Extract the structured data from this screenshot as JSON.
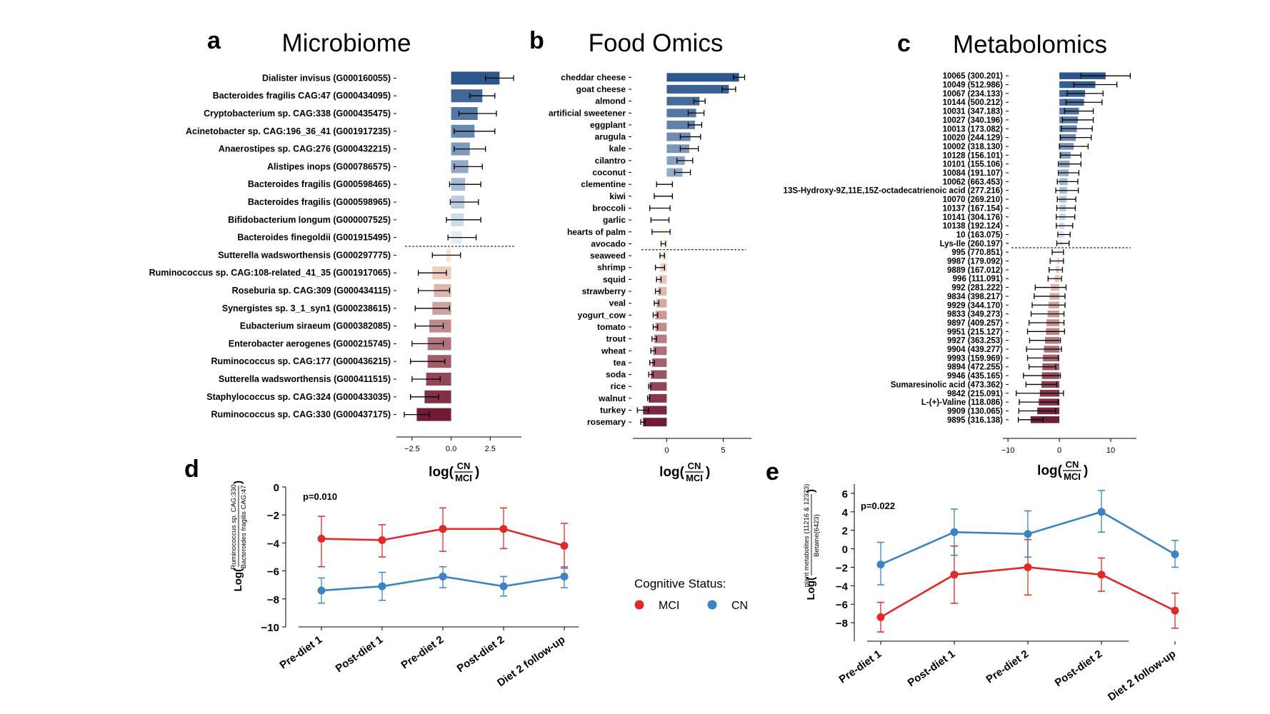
{
  "panels": {
    "a": {
      "letter": "a",
      "title": "Microbiome"
    },
    "b": {
      "letter": "b",
      "title": "Food Omics"
    },
    "c": {
      "letter": "c",
      "title": "Metabolomics"
    },
    "d": {
      "letter": "d"
    },
    "e": {
      "letter": "e"
    }
  },
  "bar_xlabel_prefix": "log(",
  "bar_xlabel_num": "CN",
  "bar_xlabel_den": "MCI",
  "bar_xlabel_suffix": ")",
  "legend": {
    "title": "Cognitive Status:",
    "items": [
      {
        "name": "MCI",
        "color": "#e02a2a"
      },
      {
        "name": "CN",
        "color": "#3a84c4"
      }
    ]
  },
  "chart_data": [
    {
      "type": "bar",
      "orientation": "horizontal",
      "panel": "a",
      "xlim": [
        -3.5,
        4.5
      ],
      "xticks": [
        -2.5,
        0,
        2.5
      ],
      "xtick_labels": [
        "−2.5",
        "0.0",
        "2.5"
      ],
      "threshold_after_index": 9,
      "categories": [
        "Dialister invisus (G000160055)",
        "Bacteroides fragilis CAG:47 (G000434095)",
        "Cryptobacterium sp. CAG:338 (G000435475)",
        "Acinetobacter sp. CAG:196_36_41 (G001917235)",
        "Anaerostipes sp. CAG:276 (G000432215)",
        "Alistipes inops (G000786575)",
        "Bacteroides fragilis (G000598465)",
        "Bacteroides fragilis (G000598965)",
        "Bifidobacterium longum (G000007525)",
        "Bacteroides finegoldii (G001915495)",
        "Sutterella wadsworthensis (G000297775)",
        "Ruminococcus sp. CAG:108-related_41_35 (G001917065)",
        "Roseburia sp. CAG:309 (G000434115)",
        "Synergistes sp. 3_1_syn1 (G000238615)",
        "Eubacterium siraeum (G000382085)",
        "Enterobacter aerogenes (G000215745)",
        "Ruminococcus sp. CAG:177 (G000436215)",
        "Sutterella wadsworthensis (G000411515)",
        "Staphylococcus sp. CAG:324 (G000433035)",
        "Ruminococcus sp. CAG:330 (G000437175)"
      ],
      "values": [
        3.1,
        2.0,
        1.7,
        1.5,
        1.2,
        1.1,
        0.9,
        0.85,
        0.8,
        0.7,
        -0.3,
        -1.2,
        -1.1,
        -1.2,
        -1.4,
        -1.5,
        -1.5,
        -1.6,
        -1.7,
        -2.2
      ],
      "errors": [
        0.9,
        0.8,
        1.2,
        1.3,
        1.0,
        0.9,
        1.0,
        0.9,
        1.1,
        0.9,
        0.9,
        0.9,
        1.0,
        1.1,
        0.9,
        1.0,
        1.1,
        0.9,
        0.9,
        0.8
      ]
    },
    {
      "type": "bar",
      "orientation": "horizontal",
      "panel": "b",
      "xlim": [
        -3,
        7.5
      ],
      "xticks": [
        0,
        5
      ],
      "xtick_labels": [
        "0",
        "5"
      ],
      "threshold_after_index": 14,
      "categories": [
        "cheddar cheese",
        "goat cheese",
        "almond",
        "artificial sweetener",
        "eggplant",
        "arugula",
        "kale",
        "cilantro",
        "coconut",
        "clementine",
        "kiwi",
        "broccoli",
        "garlic",
        "hearts of palm",
        "avocado",
        "seaweed",
        "shrimp",
        "squid",
        "strawberry",
        "veal",
        "yogurt_cow",
        "tomato",
        "trout",
        "wheat",
        "tea",
        "soda",
        "rice",
        "walnut",
        "turkey",
        "rosemary"
      ],
      "values": [
        6.4,
        5.5,
        2.9,
        2.6,
        2.5,
        2.1,
        2.0,
        1.6,
        1.4,
        -0.2,
        -0.3,
        -0.6,
        -0.6,
        -0.5,
        -0.3,
        -0.4,
        -0.6,
        -0.7,
        -0.8,
        -0.9,
        -1.0,
        -1.0,
        -1.1,
        -1.2,
        -1.3,
        -1.4,
        -1.5,
        -1.6,
        -2.1,
        -2.1
      ],
      "errors": [
        0.5,
        0.6,
        0.5,
        0.7,
        0.6,
        0.9,
        0.8,
        0.7,
        0.7,
        0.7,
        0.8,
        0.9,
        0.8,
        0.8,
        0.2,
        0.2,
        0.4,
        0.2,
        0.2,
        0.2,
        0.2,
        0.2,
        0.2,
        0.2,
        0.2,
        0.2,
        0.1,
        0.1,
        0.5,
        0.2
      ]
    },
    {
      "type": "bar",
      "orientation": "horizontal",
      "panel": "c",
      "xlim": [
        -11,
        15
      ],
      "xticks": [
        -10,
        0,
        10
      ],
      "xtick_labels": [
        "−10",
        "0",
        "10"
      ],
      "threshold_after_index": 19,
      "categories": [
        "10065 (300.201)",
        "10049 (512.986)",
        "10067 (234.133)",
        "10144 (500.212)",
        "10031 (347.183)",
        "10027 (340.196)",
        "10013 (173.082)",
        "10020 (244.129)",
        "10002 (318.130)",
        "10128 (156.101)",
        "10101 (155.106)",
        "10084 (191.107)",
        "10062 (663.453)",
        "13S-Hydroxy-9Z,11E,15Z-octadecatrienoic acid (277.216)",
        "10070 (269.210)",
        "10137 (167.154)",
        "10141 (304.176)",
        "10138 (192.124)",
        "10 (163.075)",
        "Lys-Ile (260.197)",
        "995 (770.851)",
        "9987 (179.092)",
        "9889 (167.012)",
        "996 (111.091)",
        "992 (281.222)",
        "9834 (398.217)",
        "9929 (344.170)",
        "9833 (349.273)",
        "9897 (409.257)",
        "9951 (215.127)",
        "9927 (363.253)",
        "9904 (439.277)",
        "9993 (159.969)",
        "9894 (472.255)",
        "9946 (435.165)",
        "Sumaresinolic acid (473.362)",
        "9842 (215.091)",
        "L-(+)-Valine (118.086)",
        "9909 (130.065)",
        "9895 (316.138)"
      ],
      "values": [
        9.0,
        7.0,
        5.0,
        4.8,
        3.8,
        3.6,
        3.4,
        3.2,
        2.8,
        2.2,
        2.0,
        1.8,
        1.6,
        1.5,
        1.4,
        1.3,
        1.2,
        1.0,
        0.9,
        0.7,
        -0.3,
        -0.5,
        -0.7,
        -0.9,
        -1.7,
        -1.9,
        -2.1,
        -2.3,
        -2.5,
        -2.6,
        -2.8,
        -3.0,
        -3.2,
        -3.3,
        -3.4,
        -3.5,
        -3.8,
        -4.0,
        -4.3,
        -5.6
      ],
      "errors": [
        4.8,
        4.2,
        3.5,
        3.5,
        2.8,
        3.0,
        3.0,
        3.0,
        2.8,
        2.0,
        2.2,
        2.0,
        2.0,
        2.2,
        1.8,
        1.8,
        1.8,
        1.6,
        1.2,
        1.2,
        1.1,
        1.3,
        1.3,
        1.3,
        3.0,
        3.0,
        3.2,
        3.2,
        3.4,
        3.6,
        3.0,
        3.4,
        3.0,
        2.6,
        3.6,
        3.0,
        4.6,
        3.8,
        3.6,
        2.4
      ]
    },
    {
      "type": "line",
      "panel": "d",
      "categories": [
        "Pre-diet 1",
        "Post-diet 1",
        "Pre-diet 2",
        "Post-diet 2",
        "Diet 2 follow-up"
      ],
      "ylim": [
        -10,
        0
      ],
      "yticks": [
        0,
        -2,
        -4,
        -6,
        -8,
        -10
      ],
      "ytick_labels": [
        "0",
        "−2",
        "−4",
        "−6",
        "−8",
        "−10"
      ],
      "ylabel_prefix": "Log(",
      "ylabel_num": "Ruminococcus sp. CAG:330",
      "ylabel_den": "Bacteroides fragilis CAG:47",
      "ylabel_suffix": ")",
      "annotation": "p=0.010",
      "series": [
        {
          "name": "MCI",
          "color": "#e02a2a",
          "values": [
            -3.7,
            -3.8,
            -3.0,
            -3.0,
            -4.2
          ],
          "err_low": [
            2.0,
            1.2,
            1.6,
            1.4,
            1.6
          ],
          "err_high": [
            1.6,
            1.1,
            1.5,
            1.5,
            1.6
          ]
        },
        {
          "name": "CN",
          "color": "#3a84c4",
          "values": [
            -7.4,
            -7.1,
            -6.4,
            -7.1,
            -6.4
          ],
          "err_low": [
            0.9,
            1.0,
            0.8,
            0.7,
            0.8
          ],
          "err_high": [
            0.9,
            1.0,
            0.7,
            0.7,
            0.7
          ]
        }
      ]
    },
    {
      "type": "line",
      "panel": "e",
      "categories": [
        "Pre-diet 1",
        "Post-diet 1",
        "Pre-diet 2",
        "Post-diet 2",
        "Diet 2 follow-up"
      ],
      "ylim": [
        -10,
        7
      ],
      "yticks": [
        6,
        4,
        2,
        0,
        -2,
        -4,
        -6,
        -8
      ],
      "ytick_labels": [
        "6",
        "4",
        "2",
        "0",
        "−2",
        "−4",
        "−6",
        "−8"
      ],
      "ylabel_prefix": "Log(",
      "ylabel_num": "plant metabolites (11216 & 12323)",
      "ylabel_den": "Betaine(6423)",
      "ylabel_suffix": ")",
      "annotation": "p=0.022",
      "series": [
        {
          "name": "MCI",
          "color": "#e02a2a",
          "values": [
            -7.4,
            -2.8,
            -2.0,
            -2.8,
            -6.7
          ],
          "err_low": [
            1.6,
            3.1,
            3.0,
            1.8,
            1.9
          ],
          "err_high": [
            1.6,
            3.1,
            3.0,
            1.8,
            1.9
          ]
        },
        {
          "name": "CN",
          "color": "#3a84c4",
          "values": [
            -1.7,
            1.8,
            1.6,
            4.0,
            -0.6
          ],
          "err_low": [
            2.2,
            2.5,
            2.5,
            2.2,
            1.4
          ],
          "err_high": [
            2.4,
            2.5,
            2.5,
            2.3,
            1.5
          ]
        }
      ]
    }
  ]
}
